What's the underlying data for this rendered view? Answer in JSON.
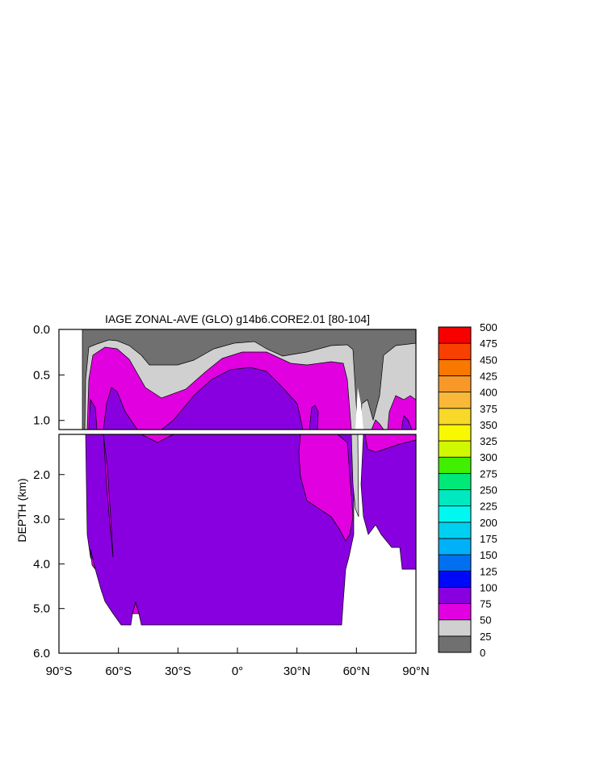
{
  "chart_data": {
    "type": "contour",
    "title": "IAGE ZONAL-AVE (GLO) g14b6.CORE2.01 [80-104]",
    "ylabel": "DEPTH (km)",
    "xlim": [
      -90,
      90
    ],
    "ylim_upper_panel_km": [
      0.0,
      1.1
    ],
    "ylim_lower_panel_km": [
      1.1,
      6.0
    ],
    "x_ticks": [
      -90,
      -60,
      -30,
      0,
      30,
      60,
      90
    ],
    "x_tick_labels": [
      "90°S",
      "60°S",
      "30°S",
      "0°",
      "30°N",
      "60°N",
      "90°N"
    ],
    "y_ticks_upper": [
      "0.0",
      "0.5",
      "1.0"
    ],
    "y_ticks_lower": [
      "2.0",
      "3.0",
      "4.0",
      "5.0",
      "6.0"
    ],
    "colorbar_levels": [
      "0",
      "25",
      "50",
      "75",
      "100",
      "125",
      "150",
      "175",
      "200",
      "225",
      "250",
      "275",
      "300",
      "325",
      "350",
      "375",
      "400",
      "425",
      "450",
      "475",
      "500"
    ],
    "colorbar_colors": [
      "#707070",
      "#d0d0d0",
      "#e000e0",
      "#8800e0",
      "#0008f8",
      "#0070f0",
      "#00b0f8",
      "#00d0f0",
      "#00f8f0",
      "#00e8c0",
      "#00e878",
      "#40f000",
      "#d0f800",
      "#f8f800",
      "#f8d828",
      "#f8b838",
      "#f89828",
      "#f87800",
      "#f84000",
      "#f80000",
      "#c80000"
    ],
    "regions": {
      "land_south_lat": -78,
      "surface_band_0_25_depth_km": [
        0.05,
        0.4
      ],
      "band_25_50_depth_km": [
        0.15,
        0.65
      ],
      "deep_75_100_interior_depth_km": [
        0.4,
        5.4
      ]
    }
  }
}
